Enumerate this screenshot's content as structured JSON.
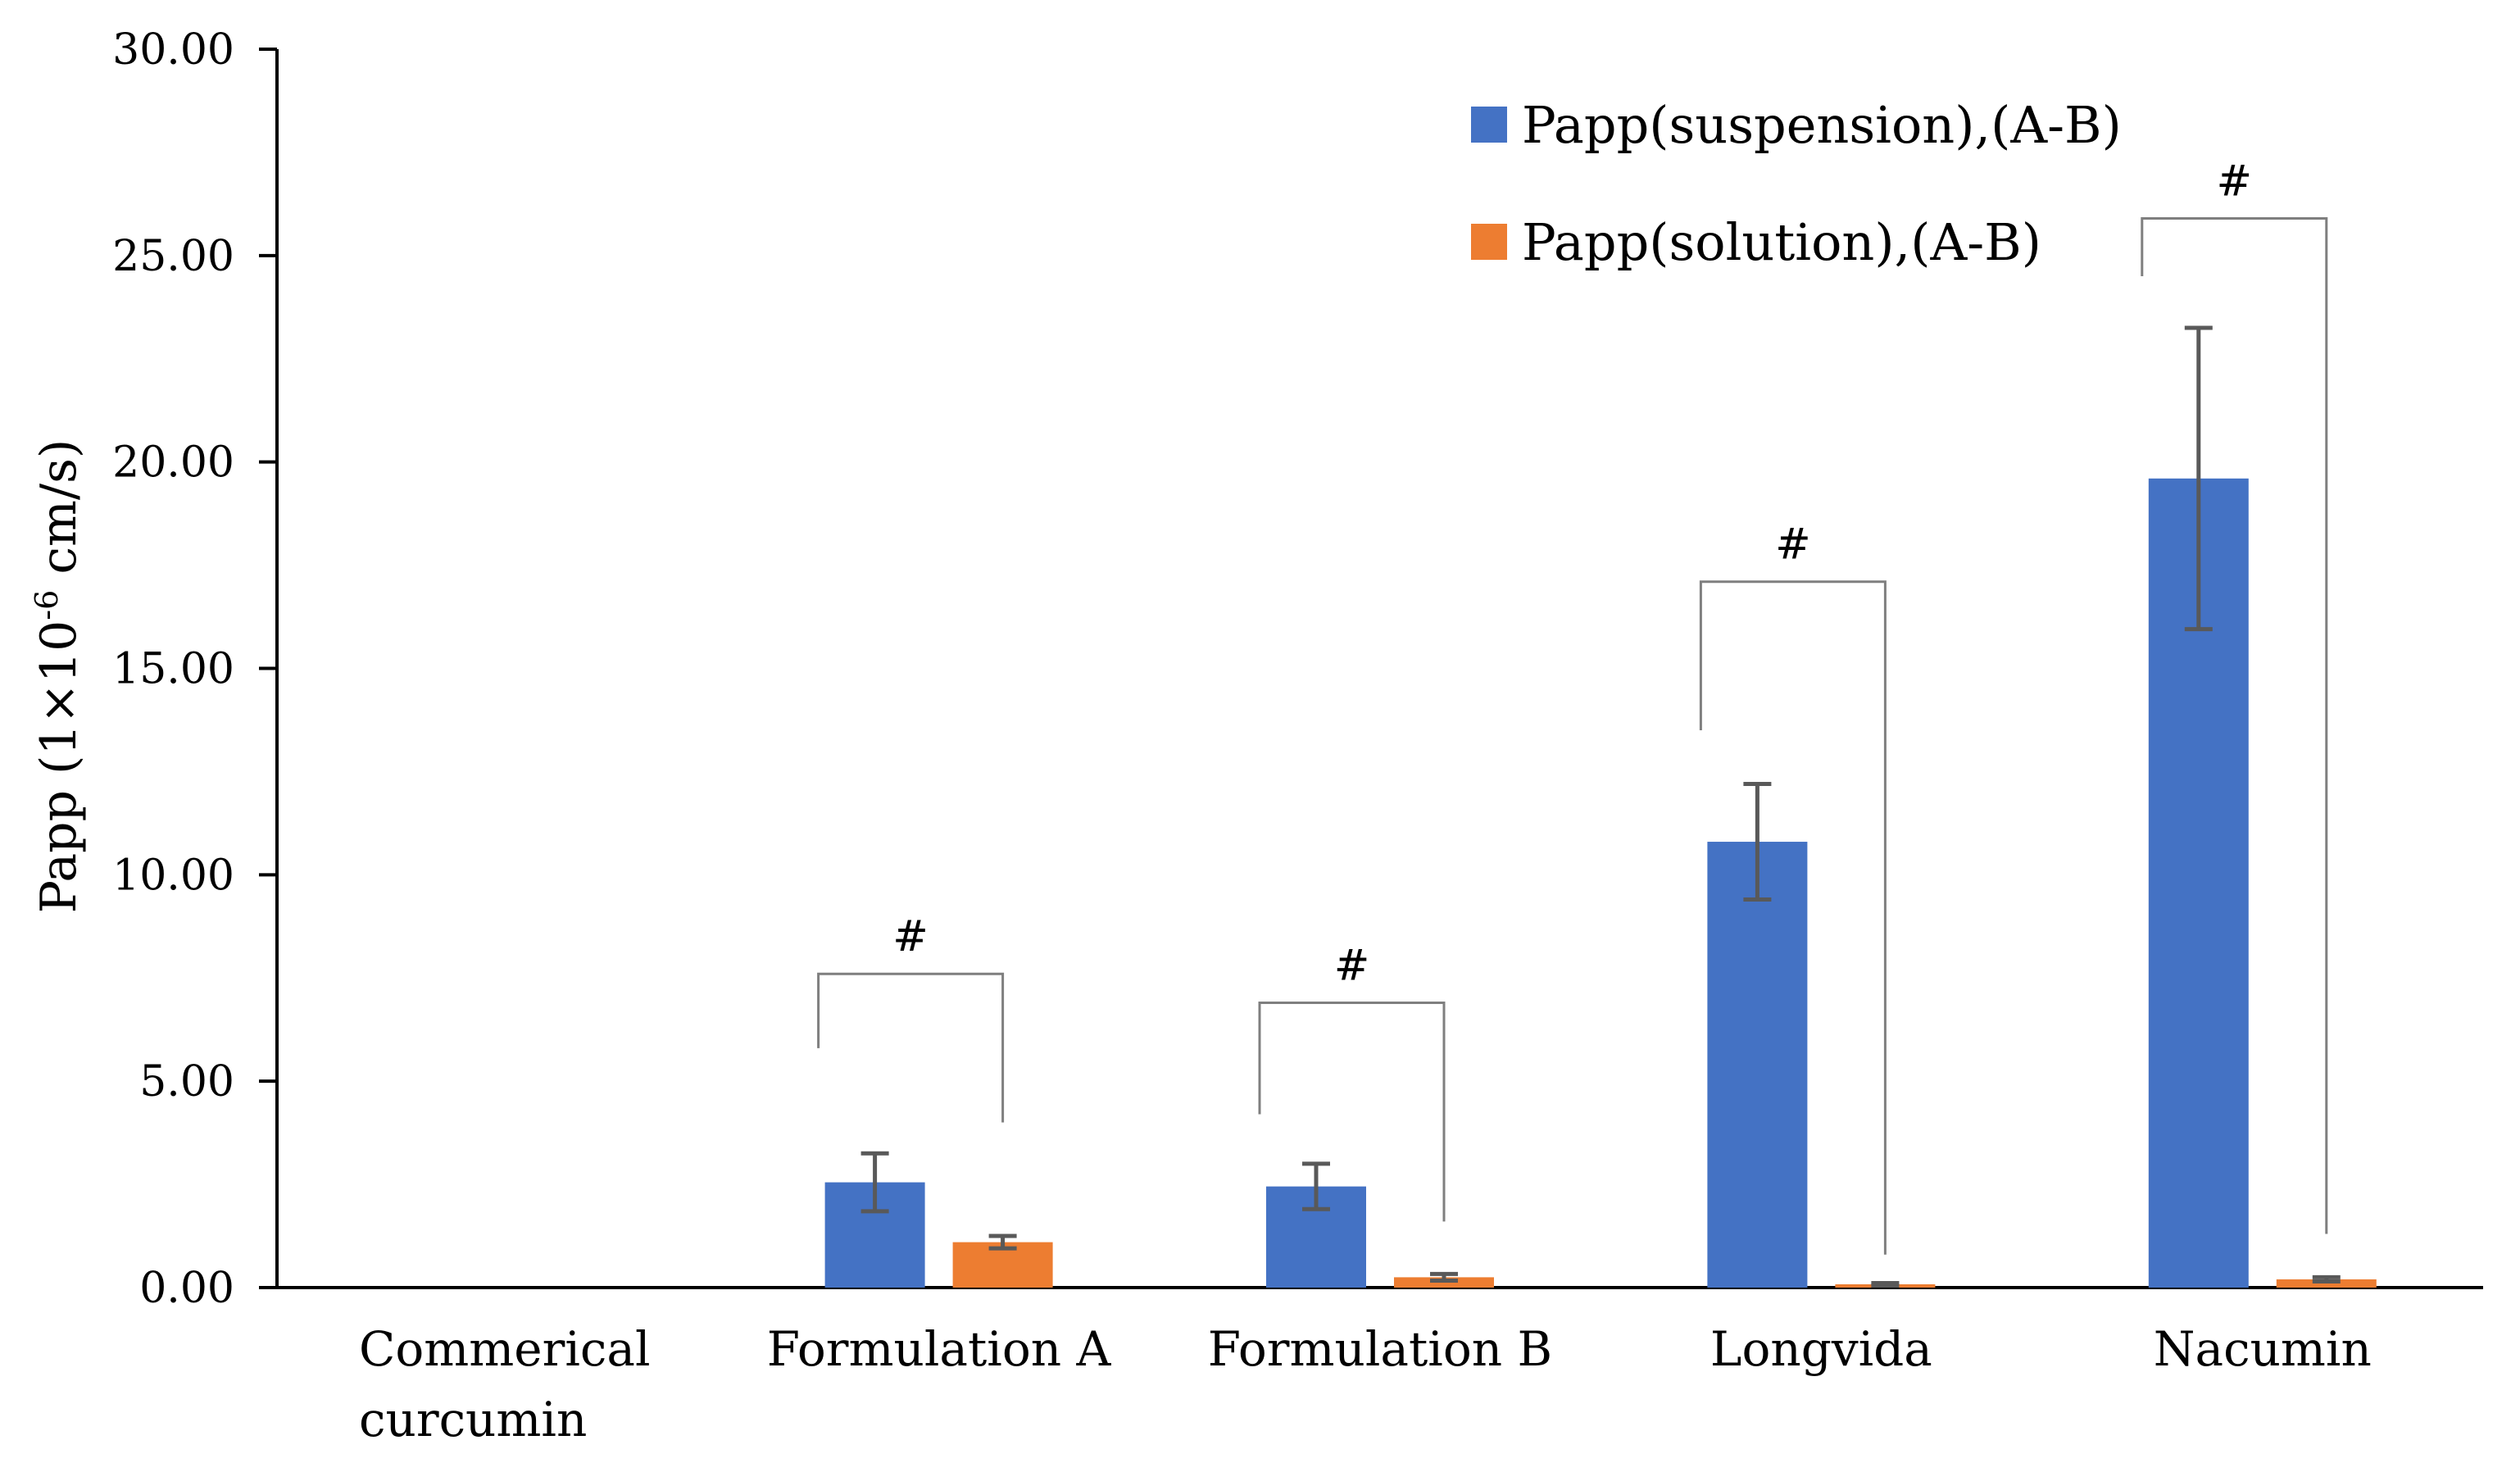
{
  "chart_data": {
    "type": "bar",
    "title": "",
    "xlabel": "",
    "ylabel": {
      "prefix": "Papp (1×10",
      "superscript": "-6",
      "suffix": " cm/s)"
    },
    "ylim": [
      0,
      30
    ],
    "yticks": [
      0,
      5,
      10,
      15,
      20,
      25,
      30
    ],
    "ytick_labels": [
      "0.00",
      "5.00",
      "10.00",
      "15.00",
      "20.00",
      "25.00",
      "30.00"
    ],
    "categories": [
      [
        "Commerical",
        "curcumin"
      ],
      [
        "Formulation A"
      ],
      [
        "Formulation B"
      ],
      [
        "Longvida"
      ],
      [
        "Nacumin"
      ]
    ],
    "series": [
      {
        "name": "Papp(suspension),(A-B)",
        "color": "#4472C4",
        "values": [
          0,
          2.55,
          2.45,
          10.8,
          19.6
        ],
        "errors": [
          0,
          0.7,
          0.55,
          1.4,
          3.65
        ]
      },
      {
        "name": "Papp(solution),(A-B)",
        "color": "#ED7D31",
        "values": [
          0,
          1.1,
          0.25,
          0.08,
          0.2
        ],
        "errors": [
          0,
          0.15,
          0.08,
          0.03,
          0.05
        ]
      }
    ],
    "significance": [
      {
        "category": 1,
        "symbol": "#",
        "level": 7.6,
        "left_end": 5.8,
        "right_end": 4.0
      },
      {
        "category": 2,
        "symbol": "#",
        "level": 6.9,
        "left_end": 4.2,
        "right_end": 1.6
      },
      {
        "category": 3,
        "symbol": "#",
        "level": 17.1,
        "left_end": 13.5,
        "right_end": 0.8
      },
      {
        "category": 4,
        "symbol": "#",
        "level": 25.9,
        "left_end": 24.5,
        "right_end": 1.3
      }
    ],
    "legend": "top-right",
    "grid": false
  }
}
